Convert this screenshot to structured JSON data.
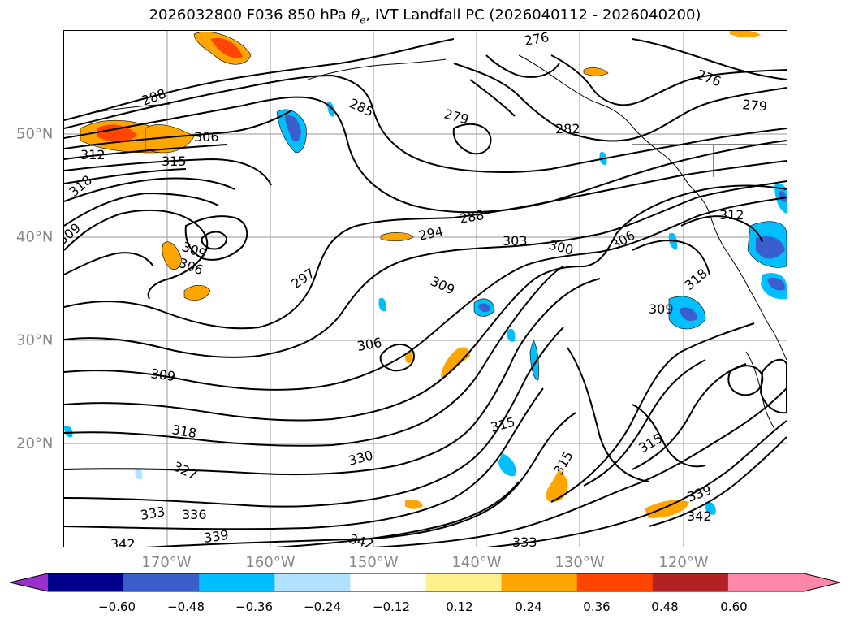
{
  "title": {
    "prefix": "2026032800 F036 850 hPa ",
    "symbol": "θ",
    "subscript": "e",
    "suffix": ", IVT Landfall PC (2026040112 - 2026040200)"
  },
  "axes": {
    "x_ticks": [
      "170°W",
      "160°W",
      "150°W",
      "140°W",
      "130°W",
      "120°W"
    ],
    "y_ticks": [
      "50°N",
      "40°N",
      "30°N",
      "20°N"
    ]
  },
  "colorbar": {
    "tick_labels": [
      "−0.60",
      "−0.48",
      "−0.36",
      "−0.24",
      "−0.12",
      "0.12",
      "0.24",
      "0.36",
      "0.48",
      "0.60"
    ],
    "colors": [
      "#9932cc",
      "#00008b",
      "#3a5fcd",
      "#00bfff",
      "#b0e2ff",
      "#ffffff",
      "#fff08c",
      "#ffa500",
      "#ff4500",
      "#b22222",
      "#ff88aa"
    ]
  },
  "contour_labels": [
    "276",
    "276",
    "279",
    "279",
    "282",
    "285",
    "288",
    "288",
    "294",
    "297",
    "303",
    "300",
    "306",
    "306",
    "306",
    "309",
    "309",
    "309",
    "309",
    "312",
    "312",
    "315",
    "315",
    "315",
    "315",
    "318",
    "318",
    "318",
    "327",
    "330",
    "333",
    "333",
    "336",
    "339",
    "339",
    "342",
    "342",
    "342",
    "306",
    "309"
  ]
}
